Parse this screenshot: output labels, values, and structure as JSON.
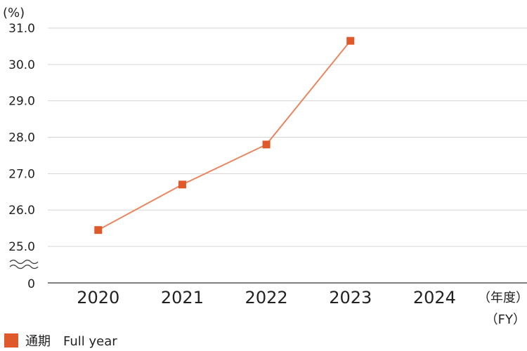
{
  "chart_data": {
    "type": "line",
    "y_unit": "(%)",
    "x_unit_line1": "（年度）",
    "x_unit_line2": "（FY）",
    "axis_break_label": "0",
    "categories": [
      "2020",
      "2021",
      "2022",
      "2023",
      "2024"
    ],
    "y_ticks": [
      "31.0",
      "30.0",
      "29.0",
      "28.0",
      "27.0",
      "26.0",
      "25.0"
    ],
    "ylim": [
      25.0,
      31.0
    ],
    "grid": true,
    "series": [
      {
        "name": "通期　Full year",
        "color": "#e0592a",
        "line_color": "#e8875f",
        "values": [
          25.45,
          26.7,
          27.8,
          30.65,
          null
        ]
      }
    ],
    "legend_position": "bottom-left"
  }
}
